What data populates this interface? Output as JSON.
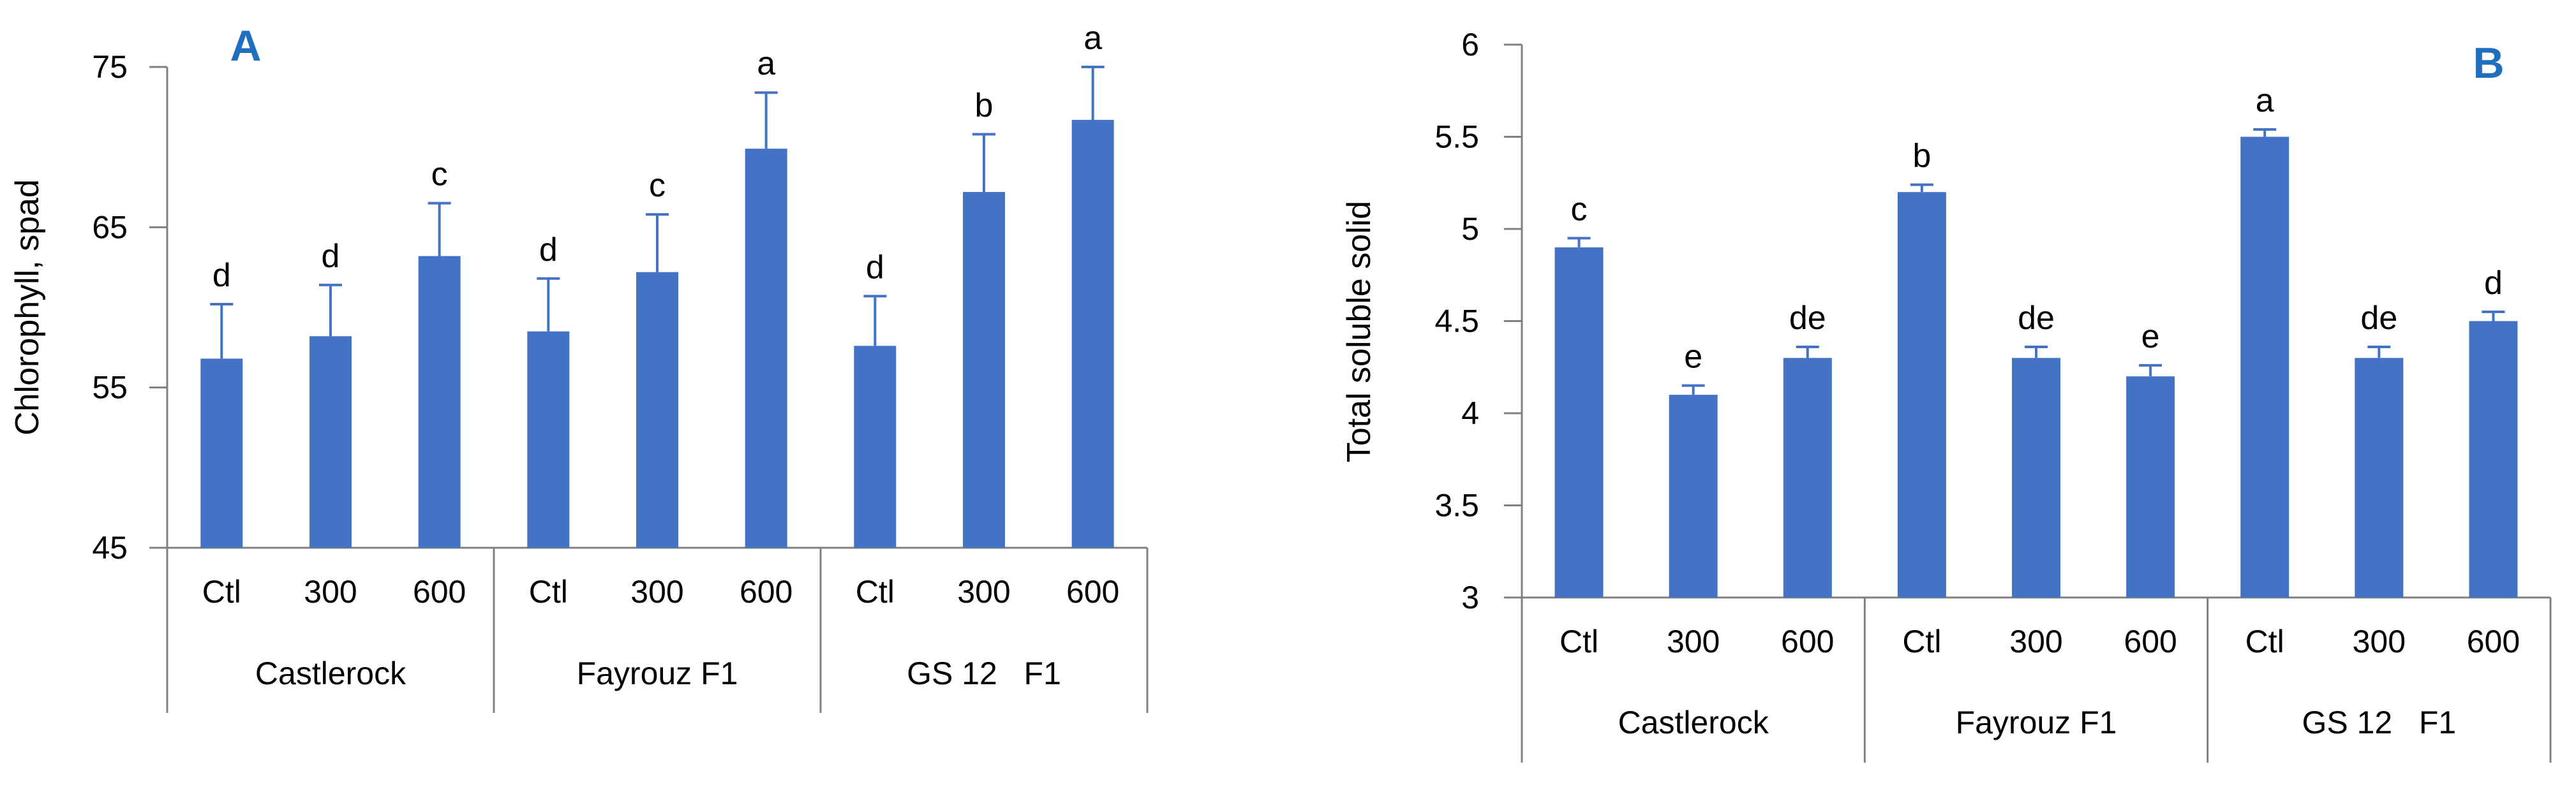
{
  "chart_data": [
    {
      "panel_label": "A",
      "type": "bar",
      "ylabel": "Chlorophyll, spad",
      "ylim": [
        45,
        75
      ],
      "yticks": [
        45,
        55,
        65,
        75
      ],
      "groups": [
        {
          "name": "Castlerock",
          "categories": [
            "Ctl",
            "300",
            "600"
          ]
        },
        {
          "name": "Fayrouz F1",
          "categories": [
            "Ctl",
            "300",
            "600"
          ]
        },
        {
          "name": "GS 12   F1",
          "categories": [
            "Ctl",
            "300",
            "600"
          ]
        }
      ],
      "values": [
        56.8,
        58.2,
        63.2,
        58.5,
        62.2,
        69.9,
        57.6,
        67.2,
        71.7
      ],
      "errors": [
        3.4,
        3.2,
        3.3,
        3.3,
        3.6,
        3.5,
        3.1,
        3.6,
        3.3
      ],
      "letters": [
        "d",
        "d",
        "c",
        "d",
        "c",
        "a",
        "d",
        "b",
        "a"
      ],
      "color": "#4472c4"
    },
    {
      "panel_label": "B",
      "type": "bar",
      "ylabel": "Total soluble solid",
      "ylim": [
        3,
        6
      ],
      "yticks": [
        3,
        3.5,
        4,
        4.5,
        5,
        5.5,
        6
      ],
      "groups": [
        {
          "name": "Castlerock",
          "categories": [
            "Ctl",
            "300",
            "600"
          ]
        },
        {
          "name": "Fayrouz F1",
          "categories": [
            "Ctl",
            "300",
            "600"
          ]
        },
        {
          "name": "GS 12   F1",
          "categories": [
            "Ctl",
            "300",
            "600"
          ]
        }
      ],
      "values": [
        4.9,
        4.1,
        4.3,
        5.2,
        4.3,
        4.2,
        5.5,
        4.3,
        4.5
      ],
      "errors": [
        0.05,
        0.05,
        0.06,
        0.04,
        0.06,
        0.06,
        0.04,
        0.06,
        0.05
      ],
      "letters": [
        "c",
        "e",
        "de",
        "b",
        "de",
        "e",
        "a",
        "de",
        "d"
      ],
      "color": "#4472c4"
    }
  ]
}
